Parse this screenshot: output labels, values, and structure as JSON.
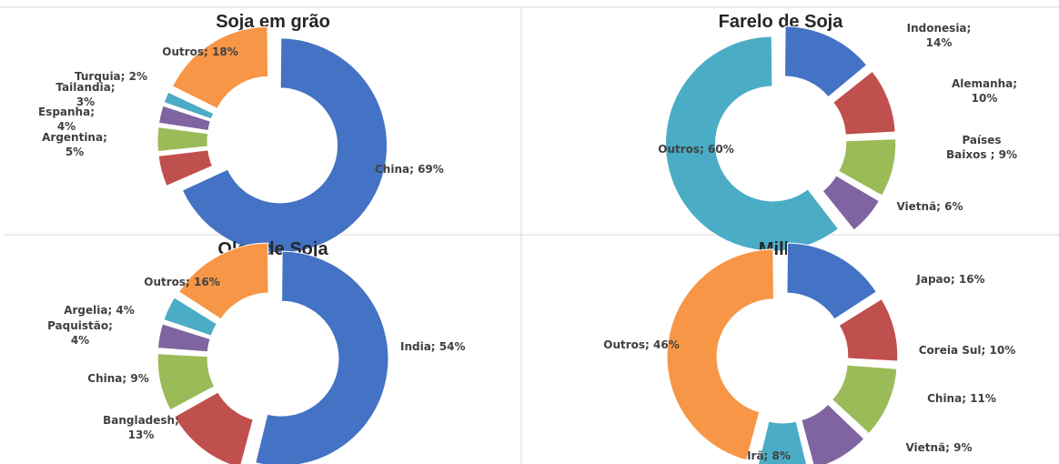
{
  "chart_data": [
    {
      "type": "pie",
      "title": "Soja em grão",
      "categories": [
        "China",
        "Argentina",
        "Espanha",
        "Tailandia",
        "Turquia",
        "Outros"
      ],
      "values": [
        69,
        5,
        4,
        3,
        2,
        18
      ],
      "labels": [
        [
          "China; 69%"
        ],
        [
          "Argentina;",
          "5%"
        ],
        [
          "Espanha;",
          "4%"
        ],
        [
          "Tailandia;",
          "3%"
        ],
        [
          "Turquia; 2%"
        ],
        [
          "Outros; 18%"
        ]
      ],
      "colors": [
        "#4472C4",
        "#C0504D",
        "#9BBB59",
        "#8064A2",
        "#4BACC6",
        "#F79646"
      ],
      "legend": "none"
    },
    {
      "type": "pie",
      "title": "Farelo de Soja",
      "categories": [
        "Indonesia",
        "Alemanha",
        "Países Baixos",
        "Vietnã",
        "Outros"
      ],
      "values": [
        14,
        10,
        9,
        6,
        60
      ],
      "labels": [
        [
          "Indonesia;",
          "14%"
        ],
        [
          "Alemanha;",
          "10%"
        ],
        [
          "Países",
          "Baixos ; 9%"
        ],
        [
          "Vietnã; 6%"
        ],
        [
          "Outros; 60%"
        ]
      ],
      "colors": [
        "#4472C4",
        "#C0504D",
        "#9BBB59",
        "#8064A2",
        "#4BACC6"
      ],
      "legend": "none"
    },
    {
      "type": "pie",
      "title": "Oleo de Soja",
      "categories": [
        "India",
        "Bangladesh",
        "China",
        "Paquistão",
        "Argelia",
        "Outros"
      ],
      "values": [
        54,
        13,
        9,
        4,
        4,
        16
      ],
      "labels": [
        [
          "India; 54%"
        ],
        [
          "Bangladesh;",
          "13%"
        ],
        [
          "China; 9%"
        ],
        [
          "Paquistão;",
          "4%"
        ],
        [
          "Argelia; 4%"
        ],
        [
          "Outros; 16%"
        ]
      ],
      "colors": [
        "#4472C4",
        "#C0504D",
        "#9BBB59",
        "#8064A2",
        "#4BACC6",
        "#F79646"
      ],
      "legend": "none"
    },
    {
      "type": "pie",
      "title": "Milho",
      "categories": [
        "Japao",
        "Coreia Sul",
        "China",
        "Vietnã",
        "Irã",
        "Outros"
      ],
      "values": [
        16,
        10,
        11,
        9,
        8,
        46
      ],
      "labels": [
        [
          "Japao; 16%"
        ],
        [
          "Coreia Sul; 10%"
        ],
        [
          "China; 11%"
        ],
        [
          "Vietnã; 9%"
        ],
        [
          "Irã; 8%"
        ],
        [
          "Outros; 46%"
        ]
      ],
      "colors": [
        "#4472C4",
        "#C0504D",
        "#9BBB59",
        "#8064A2",
        "#4BACC6",
        "#F79646"
      ],
      "legend": "none"
    }
  ]
}
